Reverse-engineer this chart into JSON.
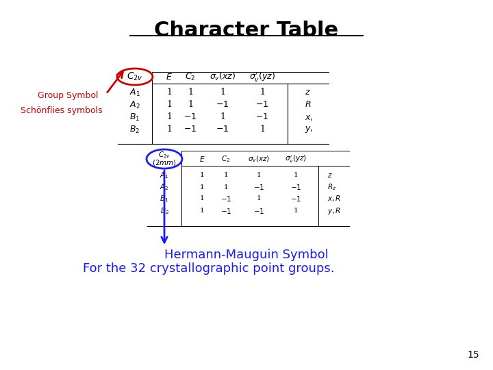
{
  "title": "Character Table",
  "title_fontsize": 22,
  "background_color": "#ffffff",
  "group_symbol_label": "Group Symbol",
  "schoenflies_label": "Schönflies symbols",
  "label_color_red": "#cc0000",
  "label_color_blue": "#1a1aff",
  "bottom_text1": "Hermann-Mauguin Symbol",
  "bottom_text2": "For the 32 crystallographic point groups.",
  "page_number": "15",
  "top_table": {
    "header_col0": "$C_{2v}$",
    "header": [
      "$E$",
      "$C_2$",
      "$\\sigma_v(xz)$",
      "$\\sigma_v'(yz)$",
      ""
    ],
    "rows": [
      [
        "$A_1$",
        "1",
        "1",
        "1",
        "1",
        "$z$"
      ],
      [
        "$A_2$",
        "1",
        "1",
        "$-1$",
        "$-1$",
        "$R$"
      ],
      [
        "$B_1$",
        "1",
        "$-1$",
        "1",
        "$-1$",
        "$x,$"
      ],
      [
        "$B_2$",
        "1",
        "$-1$",
        "$-1$",
        "1",
        "$y,$"
      ]
    ]
  },
  "bottom_table": {
    "header_col0_line1": "$C_{2v}$",
    "header_col0_line2": "$(2mm)$",
    "header": [
      "$E$",
      "$C_2$",
      "$\\sigma_v(xz)$",
      "$\\sigma_v'(yz)$",
      ""
    ],
    "rows": [
      [
        "$A_1$",
        "1",
        "1",
        "1",
        "1",
        "$z$"
      ],
      [
        "$A_2$",
        "1",
        "1",
        "$-1$",
        "$-1$",
        "$R_z$"
      ],
      [
        "$B_1$",
        "1",
        "$-1$",
        "1",
        "$-1$",
        "$x, R$"
      ],
      [
        "$B_2$",
        "1",
        "$-1$",
        "$-1$",
        "1",
        "$y, R$"
      ]
    ]
  }
}
